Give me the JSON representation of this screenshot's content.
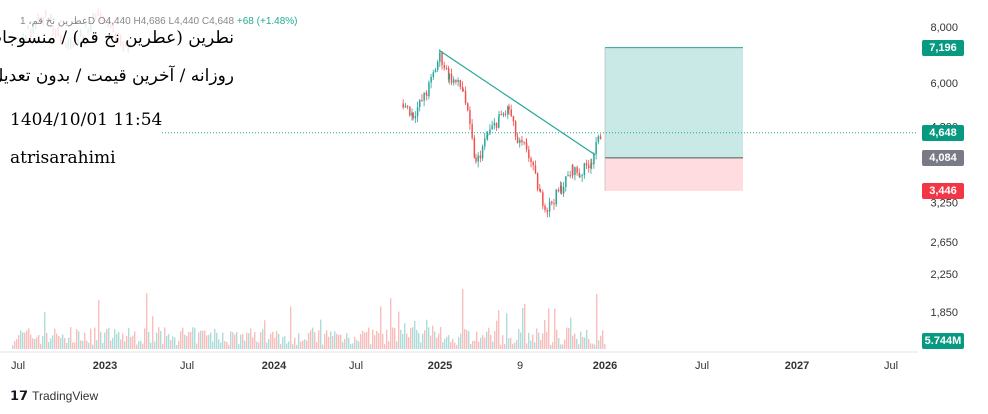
{
  "header": {
    "symbol_line": "عطرین نخ قم، 1D",
    "ohlc": "O4,440 H4,686 L4,440 C4,648",
    "change": "+68 (+1.48%)"
  },
  "overlay": {
    "title_line1": "نطرین (عطرین نخ قم) / منسوجات",
    "title_line2": "روزانه / آخرین قیمت / بدون تعدیل",
    "datetime": "1404/10/01 11:54",
    "author": "atrisarahimi"
  },
  "footer": {
    "brand": "TradingView"
  },
  "colors": {
    "up": "#26a69a",
    "down": "#ef5350",
    "trend": "#26a69a",
    "target_zone": "#b2dfdb",
    "stop_zone": "#ffcdd2",
    "badge_target": "#089981",
    "badge_entry": "#787b86",
    "badge_stop": "#f23645"
  },
  "chart_data": {
    "type": "candlestick",
    "price_axis": {
      "scale": "log",
      "ticks": [
        "8,000",
        "6,000",
        "4,800",
        "3,250",
        "2,650",
        "2,250",
        "1,850"
      ],
      "tick_values": [
        8000,
        6000,
        4800,
        3250,
        2650,
        2250,
        1850
      ],
      "range": [
        1650,
        8700
      ]
    },
    "time_axis": {
      "labels": [
        "Jul",
        "2023",
        "Jul",
        "2024",
        "Jul",
        "2025",
        "9",
        "2026",
        "Jul",
        "2027",
        "Jul"
      ],
      "bold": [
        "2023",
        "2024",
        "2025",
        "2026",
        "2027"
      ]
    },
    "last_price": 4648,
    "position": {
      "target": 7196,
      "entry": 4084,
      "stop": 3446
    },
    "labels": {
      "target": "7,196",
      "last": "4,648",
      "entry": "4,084",
      "stop": "3,446",
      "volume": "5.744M"
    },
    "trendline": {
      "from": {
        "date": "2024-12-30",
        "price": 7100
      },
      "to": {
        "date": "2025-12-10",
        "price": 4150
      }
    },
    "price_path": [
      {
        "date": "2024-10-10",
        "price": 5400
      },
      {
        "date": "2024-11-01",
        "price": 5100
      },
      {
        "date": "2024-12-01",
        "price": 5700
      },
      {
        "date": "2024-12-30",
        "price": 6900
      },
      {
        "date": "2025-01-20",
        "price": 6200
      },
      {
        "date": "2025-02-20",
        "price": 5800
      },
      {
        "date": "2025-03-20",
        "price": 3950
      },
      {
        "date": "2025-04-15",
        "price": 4600
      },
      {
        "date": "2025-05-10",
        "price": 5000
      },
      {
        "date": "2025-06-01",
        "price": 5250
      },
      {
        "date": "2025-06-20",
        "price": 4400
      },
      {
        "date": "2025-07-10",
        "price": 4300
      },
      {
        "date": "2025-08-10",
        "price": 3350
      },
      {
        "date": "2025-08-25",
        "price": 3150
      },
      {
        "date": "2025-09-25",
        "price": 3500
      },
      {
        "date": "2025-10-20",
        "price": 3850
      },
      {
        "date": "2025-11-05",
        "price": 3750
      },
      {
        "date": "2025-12-01",
        "price": 4050
      },
      {
        "date": "2025-12-22",
        "price": 4648
      }
    ]
  }
}
